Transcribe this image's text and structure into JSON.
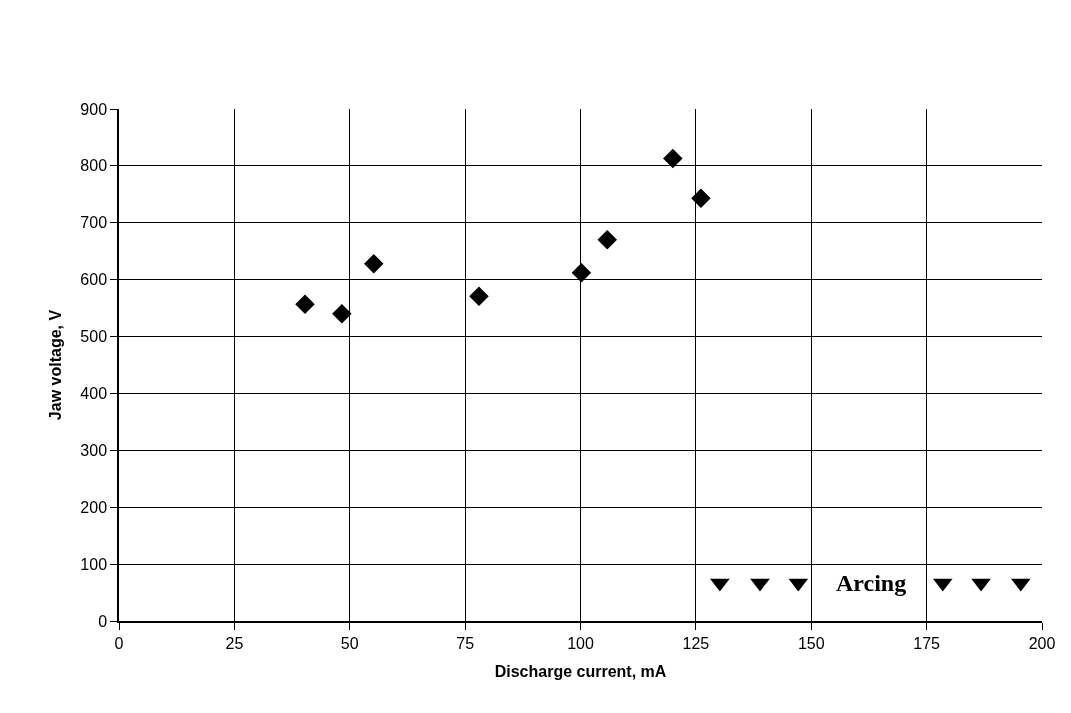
{
  "chart_data": {
    "type": "scatter",
    "xlabel": "Discharge current, mA",
    "ylabel": "Jaw voltage, V",
    "series": [
      {
        "color": "#000000",
        "marker": "diamond",
        "x": [
          40.3,
          48.3,
          55.2,
          78.0,
          100.2,
          105.8,
          120.0,
          126.1
        ],
        "values": [
          557,
          540,
          628,
          571,
          612,
          670,
          813,
          743
        ]
      },
      {
        "color": "#000000",
        "marker": "triangle",
        "x": [
          130.2,
          138.9,
          147.2,
          178.5,
          186.8,
          195.4
        ],
        "values": [
          67,
          67,
          67,
          67,
          67,
          67
        ]
      }
    ],
    "annotations": [
      "Arcing"
    ],
    "xlim": [
      0,
      200
    ],
    "xticks": [
      0,
      25,
      50,
      75,
      100,
      125,
      150,
      175,
      200
    ],
    "ylim": [
      0,
      900
    ],
    "yticks": [
      0,
      100,
      200,
      300,
      400,
      500,
      600,
      700,
      800,
      900
    ],
    "grid": true
  }
}
